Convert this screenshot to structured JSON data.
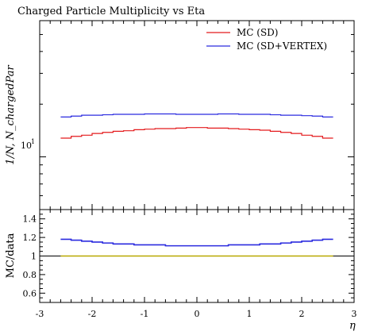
{
  "chart_data": {
    "type": "line",
    "title": "Charged Particle Multiplicity vs Eta",
    "ylabel_main": "1/N, N_chargedPar",
    "ylabel_ratio": "MC/data",
    "xlabel": "η",
    "y_scale": "log",
    "legend_position": "top-right",
    "x_range": [
      -3,
      3
    ],
    "x_ticks": [
      -3,
      -2,
      -1,
      0,
      1,
      2,
      3
    ],
    "x_tick_labels": [
      "-3",
      "-2",
      "-1",
      "0",
      "1",
      "2",
      "3"
    ],
    "main_y_tick_label": "10",
    "main_y_tick_label_exp": "1",
    "ratio_y_range": [
      0.5,
      1.5
    ],
    "ratio_y_ticks": [
      0.6,
      0.8,
      1.0,
      1.2,
      1.4
    ],
    "ratio_y_tick_labels": [
      "0.6",
      "0.8",
      "1",
      "1.2",
      "1.4"
    ],
    "x": [
      -2.5,
      -2.3,
      -2.1,
      -1.9,
      -1.7,
      -1.5,
      -1.3,
      -1.1,
      -0.9,
      -0.7,
      -0.5,
      -0.3,
      -0.1,
      0.1,
      0.3,
      0.5,
      0.7,
      0.9,
      1.1,
      1.3,
      1.5,
      1.7,
      1.9,
      2.1,
      2.3,
      2.5
    ],
    "series": [
      {
        "name": "MC (SD)",
        "color": "#e41a1c",
        "values": [
          12.8,
          13.1,
          13.3,
          13.6,
          13.8,
          14.0,
          14.1,
          14.3,
          14.4,
          14.5,
          14.5,
          14.6,
          14.7,
          14.7,
          14.6,
          14.6,
          14.5,
          14.4,
          14.3,
          14.2,
          14.0,
          13.8,
          13.6,
          13.3,
          13.1,
          12.8
        ]
      },
      {
        "name": "MC (SD+VERTEX)",
        "color": "#2b2bdf",
        "values": [
          16.9,
          17.1,
          17.3,
          17.3,
          17.4,
          17.5,
          17.5,
          17.5,
          17.6,
          17.6,
          17.6,
          17.5,
          17.5,
          17.5,
          17.5,
          17.6,
          17.6,
          17.5,
          17.5,
          17.5,
          17.4,
          17.3,
          17.3,
          17.2,
          17.1,
          16.9
        ]
      }
    ],
    "ratio_series": [
      {
        "name": "MC (SD+VERTEX)",
        "color": "#2b2bdf",
        "values": [
          1.18,
          1.17,
          1.16,
          1.15,
          1.14,
          1.13,
          1.13,
          1.12,
          1.12,
          1.12,
          1.11,
          1.11,
          1.11,
          1.11,
          1.11,
          1.11,
          1.12,
          1.12,
          1.12,
          1.13,
          1.13,
          1.14,
          1.15,
          1.16,
          1.17,
          1.18
        ]
      },
      {
        "name": "data reference",
        "color": "#b8a800",
        "values": [
          1,
          1,
          1,
          1,
          1,
          1,
          1,
          1,
          1,
          1,
          1,
          1,
          1,
          1,
          1,
          1,
          1,
          1,
          1,
          1,
          1,
          1,
          1,
          1,
          1,
          1
        ]
      }
    ],
    "reference_line": {
      "value": 1.0,
      "color": "#000000"
    }
  }
}
